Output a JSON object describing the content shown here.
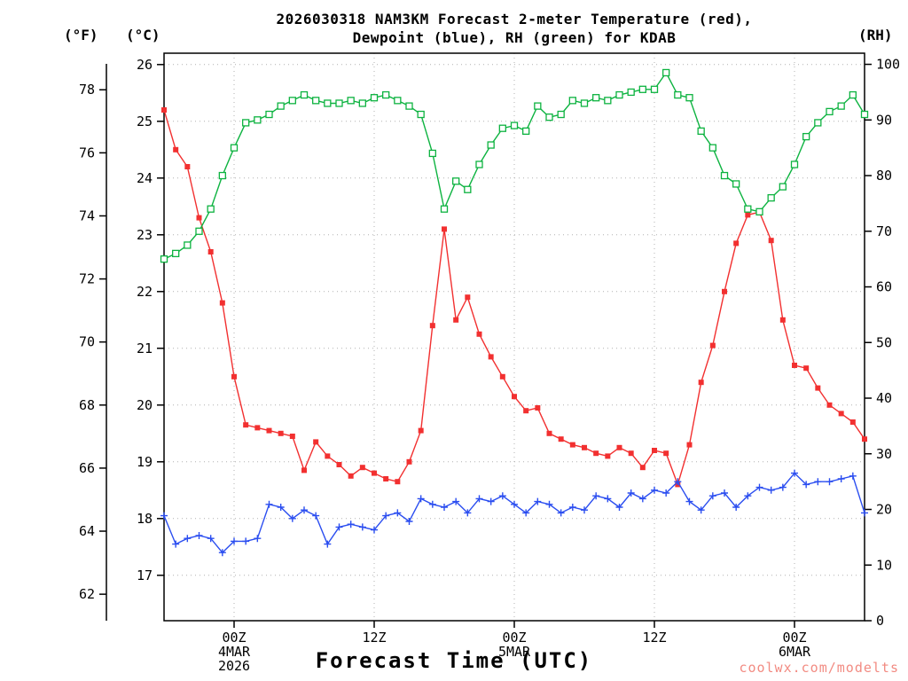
{
  "page": {
    "title_line1": "2026030318 NAM3KM Forecast 2-meter Temperature (red),",
    "title_line2": "Dewpoint (blue), RH (green) for KDAB",
    "xaxis_title": "Forecast Time (UTC)",
    "watermark": "coolwx.com/modelts",
    "left_outer_unit": "(°F)",
    "left_inner_unit": "(°C)",
    "right_unit": "(RH)"
  },
  "chart_data": {
    "type": "line",
    "model_run": "2026030318",
    "model": "NAM3KM",
    "station": "KDAB",
    "title": "2026030318 NAM3KM Forecast 2-meter Temperature (red), Dewpoint (blue), RH (green) for KDAB",
    "xlabel": "Forecast Time (UTC)",
    "x_range_hours": [
      0,
      60
    ],
    "x_interval_hours": 1,
    "c_axis_range": [
      16.2,
      26.2
    ],
    "rh_axis_range": [
      0,
      102
    ],
    "grid": true,
    "celsius_ticks": [
      17,
      18,
      19,
      20,
      21,
      22,
      23,
      24,
      25,
      26
    ],
    "fahrenheit_ticks": [
      62,
      64,
      66,
      68,
      70,
      72,
      74,
      76,
      78
    ],
    "rh_ticks": [
      0,
      10,
      20,
      30,
      40,
      50,
      60,
      70,
      80,
      90,
      100
    ],
    "x_ticks": [
      {
        "hour": 6,
        "label": "00Z",
        "sub": "4MAR",
        "sub2": "2026"
      },
      {
        "hour": 18,
        "label": "12Z"
      },
      {
        "hour": 30,
        "label": "00Z",
        "sub": "5MAR"
      },
      {
        "hour": 42,
        "label": "12Z"
      },
      {
        "hour": 54,
        "label": "00Z",
        "sub": "6MAR"
      }
    ],
    "series": [
      {
        "name": "temperature-2m",
        "label": "2-meter Temperature",
        "unit": "C",
        "axis": "left",
        "color": "#f23030",
        "marker": "filled-square",
        "values": [
          25.2,
          24.5,
          24.2,
          23.3,
          22.7,
          21.8,
          20.5,
          19.65,
          19.6,
          19.55,
          19.5,
          19.45,
          18.85,
          19.35,
          19.1,
          18.95,
          18.75,
          18.9,
          18.8,
          18.7,
          18.65,
          19.0,
          19.55,
          21.4,
          23.1,
          21.5,
          21.9,
          21.25,
          20.85,
          20.5,
          20.15,
          19.9,
          19.95,
          19.5,
          19.4,
          19.3,
          19.25,
          19.15,
          19.1,
          19.25,
          19.15,
          18.9,
          19.2,
          19.15,
          18.6,
          19.3,
          20.4,
          21.05,
          22.0,
          22.85,
          23.35,
          23.4,
          22.9,
          21.5,
          20.7,
          20.65,
          20.3,
          20.0,
          19.85,
          19.7,
          19.4
        ]
      },
      {
        "name": "dewpoint-2m",
        "label": "Dewpoint",
        "unit": "C",
        "axis": "left",
        "color": "#2a4df0",
        "marker": "plus",
        "values": [
          18.05,
          17.55,
          17.65,
          17.7,
          17.65,
          17.4,
          17.6,
          17.6,
          17.65,
          18.25,
          18.2,
          18.0,
          18.15,
          18.05,
          17.55,
          17.85,
          17.9,
          17.85,
          17.8,
          18.05,
          18.1,
          17.95,
          18.35,
          18.25,
          18.2,
          18.3,
          18.1,
          18.35,
          18.3,
          18.4,
          18.25,
          18.1,
          18.3,
          18.25,
          18.1,
          18.2,
          18.15,
          18.4,
          18.35,
          18.2,
          18.45,
          18.35,
          18.5,
          18.45,
          18.65,
          18.3,
          18.15,
          18.4,
          18.45,
          18.2,
          18.4,
          18.55,
          18.5,
          18.55,
          18.8,
          18.6,
          18.65,
          18.65,
          18.7,
          18.75,
          18.1
        ]
      },
      {
        "name": "relative-humidity",
        "label": "RH",
        "unit": "%",
        "axis": "right",
        "color": "#0db340",
        "marker": "open-square",
        "values": [
          65,
          66,
          67.5,
          70,
          74,
          80,
          85,
          89.5,
          90,
          91,
          92.5,
          93.5,
          94.5,
          93.5,
          93,
          93,
          93.5,
          93,
          94,
          94.5,
          93.5,
          92.5,
          91,
          84,
          74,
          79,
          77.5,
          82,
          85.5,
          88.5,
          89,
          88,
          92.5,
          90.5,
          91,
          93.5,
          93,
          94,
          93.5,
          94.5,
          95,
          95.5,
          95.5,
          98.5,
          94.5,
          94,
          88,
          85,
          80,
          78.5,
          74,
          73.5,
          76,
          78,
          82,
          87,
          89.5,
          91.5,
          92.5,
          94.5,
          91
        ]
      }
    ]
  }
}
